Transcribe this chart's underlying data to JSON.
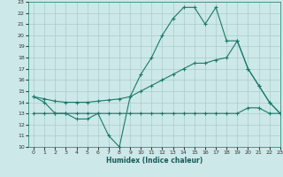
{
  "xlabel": "Humidex (Indice chaleur)",
  "bg_color": "#cce8e8",
  "grid_color": "#aacccc",
  "line_color": "#1a7a6a",
  "xlim": [
    0,
    23
  ],
  "ylim": [
    10,
    23
  ],
  "line1_x": [
    0,
    1,
    2,
    3,
    4,
    5,
    6,
    7,
    8,
    9,
    10,
    11,
    12,
    13,
    14,
    15,
    16,
    17,
    18,
    19,
    20,
    21,
    22,
    23
  ],
  "line1_y": [
    14.5,
    14.0,
    13.0,
    13.0,
    12.5,
    12.5,
    13.0,
    11.0,
    10.0,
    14.5,
    16.5,
    18.0,
    20.0,
    21.5,
    22.5,
    22.5,
    21.0,
    22.5,
    19.5,
    19.5,
    17.0,
    15.5,
    14.0,
    13.0
  ],
  "line2_x": [
    0,
    1,
    2,
    3,
    4,
    5,
    6,
    7,
    8,
    9,
    10,
    11,
    12,
    13,
    14,
    15,
    16,
    17,
    18,
    19,
    20,
    21,
    22,
    23
  ],
  "line2_y": [
    14.5,
    14.3,
    14.1,
    14.0,
    14.0,
    14.0,
    14.1,
    14.2,
    14.3,
    14.5,
    15.0,
    15.5,
    16.0,
    16.5,
    17.0,
    17.5,
    17.5,
    17.8,
    18.0,
    19.5,
    17.0,
    15.5,
    14.0,
    13.0
  ],
  "line3_x": [
    0,
    1,
    2,
    3,
    4,
    5,
    6,
    7,
    8,
    9,
    10,
    11,
    12,
    13,
    14,
    15,
    16,
    17,
    18,
    19,
    20,
    21,
    22,
    23
  ],
  "line3_y": [
    13.0,
    13.0,
    13.0,
    13.0,
    13.0,
    13.0,
    13.0,
    13.0,
    13.0,
    13.0,
    13.0,
    13.0,
    13.0,
    13.0,
    13.0,
    13.0,
    13.0,
    13.0,
    13.0,
    13.0,
    13.5,
    13.5,
    13.0,
    13.0
  ]
}
